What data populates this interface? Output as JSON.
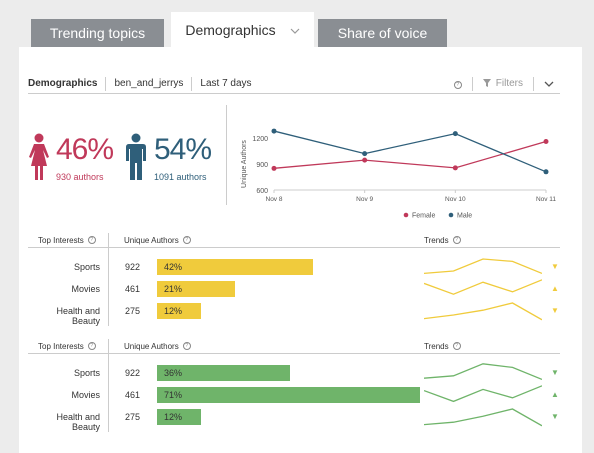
{
  "tabs": [
    {
      "label": "Trending topics"
    },
    {
      "label": "Demographics",
      "chevron": "chevron-down-icon"
    },
    {
      "label": "Share of voice"
    }
  ],
  "filterbar": {
    "title": "Demographics",
    "handle": "ben_and_jerrys",
    "range": "Last 7 days",
    "filters_label": "Filters"
  },
  "demographics": {
    "female": {
      "pct": "46%",
      "authors": "930 authors",
      "color": "#c0395a"
    },
    "male": {
      "pct": "54%",
      "authors": "1091 authors",
      "color": "#2f5f7a"
    }
  },
  "chart_data": {
    "type": "line",
    "x": [
      "Nov 8",
      "Nov 9",
      "Nov 10",
      "Nov 11"
    ],
    "ylabel": "Unique Authors",
    "ylim": [
      600,
      1400
    ],
    "yticks": [
      600,
      900,
      1200
    ],
    "series": [
      {
        "name": "Female",
        "color": "#c0395a",
        "values": [
          850,
          945,
          855,
          1160
        ]
      },
      {
        "name": "Male",
        "color": "#2f5f7a",
        "values": [
          1280,
          1020,
          1250,
          810
        ]
      }
    ],
    "legend": "bottom"
  },
  "interests": [
    {
      "headers": {
        "col1": "Top Interests",
        "col2": "Unique Authors",
        "col3": "Trends"
      },
      "color": "#f0cb3c",
      "rows": [
        {
          "category": "Sports",
          "count": "922",
          "pct": "42%",
          "value": 42,
          "trend": [
            0.85,
            0.75,
            0.25,
            0.35,
            0.85
          ],
          "arrow": "▼"
        },
        {
          "category": "Movies",
          "count": "461",
          "pct": "21%",
          "value": 21,
          "trend": [
            0.35,
            0.8,
            0.3,
            0.7,
            0.2
          ],
          "arrow": "▲"
        },
        {
          "category": "Health and Beauty",
          "count": "275",
          "pct": "12%",
          "value": 12,
          "trend": [
            0.9,
            0.75,
            0.55,
            0.25,
            0.95
          ],
          "arrow": "▼"
        }
      ]
    },
    {
      "headers": {
        "col1": "Top Interests",
        "col2": "Unique Authors",
        "col3": "Trends"
      },
      "color": "#6fb46a",
      "rows": [
        {
          "category": "Sports",
          "count": "922",
          "pct": "36%",
          "value": 36,
          "trend": [
            0.8,
            0.7,
            0.2,
            0.35,
            0.85
          ],
          "arrow": "▼"
        },
        {
          "category": "Movies",
          "count": "461",
          "pct": "71%",
          "value": 71,
          "trend": [
            0.4,
            0.85,
            0.35,
            0.7,
            0.2
          ],
          "arrow": "▲"
        },
        {
          "category": "Health and Beauty",
          "count": "275",
          "pct": "12%",
          "value": 12,
          "trend": [
            0.9,
            0.8,
            0.55,
            0.25,
            0.95
          ],
          "arrow": "▼"
        }
      ]
    }
  ]
}
